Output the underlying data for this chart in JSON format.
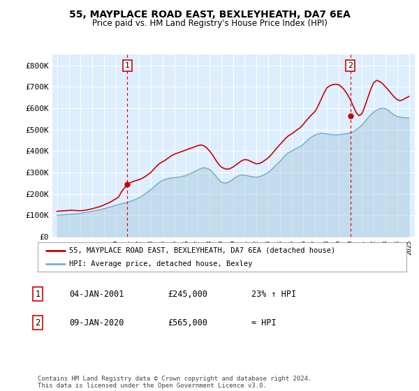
{
  "title": "55, MAYPLACE ROAD EAST, BEXLEYHEATH, DA7 6EA",
  "subtitle": "Price paid vs. HM Land Registry's House Price Index (HPI)",
  "legend_line1": "55, MAYPLACE ROAD EAST, BEXLEYHEATH, DA7 6EA (detached house)",
  "legend_line2": "HPI: Average price, detached house, Bexley",
  "annotation1_date": "04-JAN-2001",
  "annotation1_price": "£245,000",
  "annotation1_hpi": "23% ↑ HPI",
  "annotation2_date": "09-JAN-2020",
  "annotation2_price": "£565,000",
  "annotation2_hpi": "≈ HPI",
  "footer": "Contains HM Land Registry data © Crown copyright and database right 2024.\nThis data is licensed under the Open Government Licence v3.0.",
  "red_color": "#cc0000",
  "blue_color": "#7aaacc",
  "blue_fill": "#aaccdd",
  "plot_bg": "#ddeeff",
  "grid_color": "#ffffff",
  "ylim": [
    0,
    850000
  ],
  "yticks": [
    0,
    100000,
    200000,
    300000,
    400000,
    500000,
    600000,
    700000,
    800000
  ],
  "ytick_labels": [
    "£0",
    "£100K",
    "£200K",
    "£300K",
    "£400K",
    "£500K",
    "£600K",
    "£700K",
    "£800K"
  ],
  "hpi_x": [
    1995.0,
    1995.25,
    1995.5,
    1995.75,
    1996.0,
    1996.25,
    1996.5,
    1996.75,
    1997.0,
    1997.25,
    1997.5,
    1997.75,
    1998.0,
    1998.25,
    1998.5,
    1998.75,
    1999.0,
    1999.25,
    1999.5,
    1999.75,
    2000.0,
    2000.25,
    2000.5,
    2000.75,
    2001.0,
    2001.25,
    2001.5,
    2001.75,
    2002.0,
    2002.25,
    2002.5,
    2002.75,
    2003.0,
    2003.25,
    2003.5,
    2003.75,
    2004.0,
    2004.25,
    2004.5,
    2004.75,
    2005.0,
    2005.25,
    2005.5,
    2005.75,
    2006.0,
    2006.25,
    2006.5,
    2006.75,
    2007.0,
    2007.25,
    2007.5,
    2007.75,
    2008.0,
    2008.25,
    2008.5,
    2008.75,
    2009.0,
    2009.25,
    2009.5,
    2009.75,
    2010.0,
    2010.25,
    2010.5,
    2010.75,
    2011.0,
    2011.25,
    2011.5,
    2011.75,
    2012.0,
    2012.25,
    2012.5,
    2012.75,
    2013.0,
    2013.25,
    2013.5,
    2013.75,
    2014.0,
    2014.25,
    2014.5,
    2014.75,
    2015.0,
    2015.25,
    2015.5,
    2015.75,
    2016.0,
    2016.25,
    2016.5,
    2016.75,
    2017.0,
    2017.25,
    2017.5,
    2017.75,
    2018.0,
    2018.25,
    2018.5,
    2018.75,
    2019.0,
    2019.25,
    2019.5,
    2019.75,
    2020.0,
    2020.25,
    2020.5,
    2020.75,
    2021.0,
    2021.25,
    2021.5,
    2021.75,
    2022.0,
    2022.25,
    2022.5,
    2022.75,
    2023.0,
    2023.25,
    2023.5,
    2023.75,
    2024.0,
    2024.25,
    2024.5,
    2024.75,
    2025.0
  ],
  "hpi_y": [
    100000,
    101000,
    102000,
    103000,
    104000,
    105000,
    106000,
    107000,
    109000,
    111000,
    113000,
    115000,
    118000,
    121000,
    124000,
    127000,
    130000,
    134000,
    138000,
    142000,
    146000,
    150000,
    154000,
    157000,
    160000,
    165000,
    170000,
    175000,
    182000,
    190000,
    200000,
    210000,
    220000,
    232000,
    244000,
    255000,
    263000,
    268000,
    272000,
    274000,
    275000,
    277000,
    279000,
    282000,
    286000,
    292000,
    298000,
    305000,
    312000,
    318000,
    322000,
    320000,
    314000,
    302000,
    285000,
    268000,
    255000,
    250000,
    252000,
    258000,
    268000,
    278000,
    285000,
    288000,
    287000,
    284000,
    281000,
    279000,
    278000,
    280000,
    285000,
    292000,
    300000,
    312000,
    325000,
    338000,
    352000,
    368000,
    382000,
    393000,
    400000,
    408000,
    415000,
    422000,
    432000,
    445000,
    458000,
    468000,
    475000,
    480000,
    483000,
    482000,
    480000,
    478000,
    476000,
    475000,
    476000,
    478000,
    480000,
    482000,
    485000,
    490000,
    500000,
    510000,
    522000,
    538000,
    555000,
    570000,
    582000,
    592000,
    598000,
    600000,
    598000,
    590000,
    578000,
    568000,
    562000,
    558000,
    556000,
    555000,
    555000
  ],
  "red_x": [
    1995.0,
    1995.25,
    1995.5,
    1995.75,
    1996.0,
    1996.25,
    1996.5,
    1996.75,
    1997.0,
    1997.25,
    1997.5,
    1997.75,
    1998.0,
    1998.25,
    1998.5,
    1998.75,
    1999.0,
    1999.25,
    1999.5,
    1999.75,
    2000.0,
    2000.25,
    2000.5,
    2000.75,
    2001.0,
    2001.25,
    2001.5,
    2001.75,
    2002.0,
    2002.25,
    2002.5,
    2002.75,
    2003.0,
    2003.25,
    2003.5,
    2003.75,
    2004.0,
    2004.25,
    2004.5,
    2004.75,
    2005.0,
    2005.25,
    2005.5,
    2005.75,
    2006.0,
    2006.25,
    2006.5,
    2006.75,
    2007.0,
    2007.25,
    2007.5,
    2007.75,
    2008.0,
    2008.25,
    2008.5,
    2008.75,
    2009.0,
    2009.25,
    2009.5,
    2009.75,
    2010.0,
    2010.25,
    2010.5,
    2010.75,
    2011.0,
    2011.25,
    2011.5,
    2011.75,
    2012.0,
    2012.25,
    2012.5,
    2012.75,
    2013.0,
    2013.25,
    2013.5,
    2013.75,
    2014.0,
    2014.25,
    2014.5,
    2014.75,
    2015.0,
    2015.25,
    2015.5,
    2015.75,
    2016.0,
    2016.25,
    2016.5,
    2016.75,
    2017.0,
    2017.25,
    2017.5,
    2017.75,
    2018.0,
    2018.25,
    2018.5,
    2018.75,
    2019.0,
    2019.25,
    2019.5,
    2019.75,
    2020.0,
    2020.25,
    2020.5,
    2020.75,
    2021.0,
    2021.25,
    2021.5,
    2021.75,
    2022.0,
    2022.25,
    2022.5,
    2022.75,
    2023.0,
    2023.25,
    2023.5,
    2023.75,
    2024.0,
    2024.25,
    2024.5,
    2024.75,
    2025.0
  ],
  "red_y": [
    118000,
    119000,
    120000,
    121000,
    122000,
    123000,
    122000,
    121000,
    121000,
    122000,
    124000,
    127000,
    130000,
    134000,
    138000,
    142000,
    148000,
    154000,
    160000,
    168000,
    176000,
    185000,
    210000,
    228000,
    245000,
    252000,
    258000,
    262000,
    266000,
    272000,
    280000,
    290000,
    300000,
    315000,
    330000,
    342000,
    350000,
    358000,
    368000,
    378000,
    385000,
    390000,
    395000,
    400000,
    405000,
    410000,
    415000,
    420000,
    425000,
    428000,
    425000,
    415000,
    400000,
    382000,
    360000,
    340000,
    325000,
    318000,
    315000,
    318000,
    325000,
    335000,
    345000,
    355000,
    360000,
    358000,
    352000,
    345000,
    340000,
    342000,
    348000,
    358000,
    368000,
    382000,
    398000,
    415000,
    430000,
    445000,
    460000,
    472000,
    480000,
    490000,
    500000,
    510000,
    525000,
    542000,
    558000,
    572000,
    585000,
    610000,
    640000,
    670000,
    695000,
    705000,
    710000,
    712000,
    710000,
    700000,
    685000,
    665000,
    640000,
    610000,
    580000,
    565000,
    575000,
    610000,
    650000,
    690000,
    720000,
    730000,
    725000,
    715000,
    700000,
    685000,
    668000,
    652000,
    640000,
    635000,
    640000,
    648000,
    655000
  ],
  "sale1_year": 2001.0,
  "sale1_value": 245000,
  "sale2_year": 2020.0,
  "sale2_value": 565000,
  "ann1_x": 2001.0,
  "ann2_x": 2020.0,
  "xlim_left": 1994.6,
  "xlim_right": 2025.5
}
